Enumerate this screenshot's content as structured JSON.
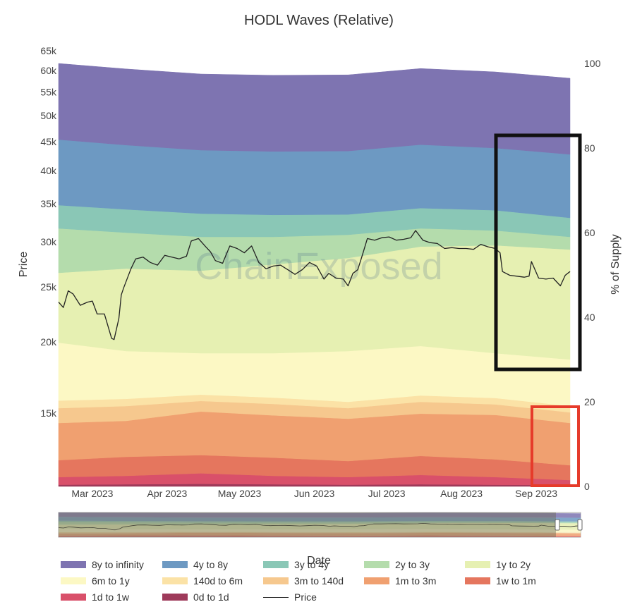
{
  "chart_data": {
    "type": "area",
    "title": "HODL Waves (Relative)",
    "watermark": "ChainExposed",
    "xlabel": "Date",
    "ylabel_left": "Price",
    "ylabel_right": "% of Supply",
    "x_ticks": [
      "Mar 2023",
      "Apr 2023",
      "May 2023",
      "Jun 2023",
      "Jul 2023",
      "Aug 2023",
      "Sep 2023"
    ],
    "x_tick_dates": [
      "2023-03-01",
      "2023-04-01",
      "2023-05-01",
      "2023-06-01",
      "2023-07-01",
      "2023-08-01",
      "2023-09-01"
    ],
    "x_range": [
      "2023-02-15",
      "2023-09-15"
    ],
    "y_left_scale": "log",
    "y_left_ticks": [
      "15k",
      "20k",
      "25k",
      "30k",
      "35k",
      "40k",
      "45k",
      "50k",
      "55k",
      "60k",
      "65k"
    ],
    "y_left_tick_values": [
      15000,
      20000,
      25000,
      30000,
      35000,
      40000,
      45000,
      50000,
      55000,
      60000,
      65000
    ],
    "y_right_ticks": [
      "0",
      "20",
      "40",
      "60",
      "80",
      "100"
    ],
    "y_right_range": [
      0,
      100
    ],
    "dates": [
      "2023-02-15",
      "2023-03-15",
      "2023-04-15",
      "2023-05-15",
      "2023-06-15",
      "2023-07-15",
      "2023-08-15",
      "2023-09-15"
    ],
    "series": [
      {
        "name": "0d to 1d",
        "color": "#9e3a5a",
        "values": [
          0.4,
          0.5,
          0.6,
          0.5,
          0.4,
          0.5,
          0.4,
          0.3
        ]
      },
      {
        "name": "1d to 1w",
        "color": "#d9506a",
        "values": [
          1.8,
          2.0,
          2.5,
          2.0,
          1.8,
          2.2,
          1.8,
          1.2
        ]
      },
      {
        "name": "1w to 1m",
        "color": "#e5765e",
        "values": [
          4.0,
          4.5,
          4.3,
          4.3,
          3.8,
          4.5,
          4.2,
          3.5
        ]
      },
      {
        "name": "1m to 3m",
        "color": "#f0a070",
        "values": [
          8.8,
          8.5,
          10.3,
          10.0,
          10.0,
          10.0,
          10.5,
          10.0
        ]
      },
      {
        "name": "3m to 140d",
        "color": "#f6c88e",
        "values": [
          3.5,
          3.5,
          2.5,
          2.7,
          2.5,
          2.8,
          2.5,
          2.5
        ]
      },
      {
        "name": "140d to 6m",
        "color": "#fbe2a6",
        "values": [
          1.8,
          1.7,
          1.5,
          1.5,
          1.5,
          1.5,
          1.5,
          1.5
        ]
      },
      {
        "name": "6m to 1y",
        "color": "#fcf8c4",
        "values": [
          13.7,
          11.3,
          9.8,
          10.5,
          12.0,
          11.7,
          10.6,
          11.0
        ]
      },
      {
        "name": "1y to 2y",
        "color": "#e6f0b2",
        "values": [
          16.5,
          19.5,
          19.5,
          21.0,
          22.0,
          23.5,
          25.5,
          26.0
        ]
      },
      {
        "name": "2y to 3y",
        "color": "#b4dcac",
        "values": [
          10.5,
          8.5,
          8.0,
          6.5,
          5.5,
          4.3,
          3.5,
          3.0
        ]
      },
      {
        "name": "3y to 4y",
        "color": "#8ac7b6",
        "values": [
          5.5,
          5.5,
          5.5,
          5.2,
          4.8,
          4.8,
          4.8,
          4.5
        ]
      },
      {
        "name": "4y to 8y",
        "color": "#6d99c2",
        "values": [
          15.5,
          15.2,
          15.0,
          15.0,
          15.0,
          15.0,
          14.7,
          15.0
        ]
      },
      {
        "name": "8y to infinity",
        "color": "#7e74b1",
        "values": [
          18.0,
          18.0,
          18.0,
          18.0,
          18.0,
          18.0,
          18.0,
          18.0
        ]
      }
    ],
    "price": {
      "name": "Price",
      "color": "#222222",
      "dates": [
        "2023-02-15",
        "2023-02-17",
        "2023-02-19",
        "2023-02-21",
        "2023-02-24",
        "2023-02-27",
        "2023-03-01",
        "2023-03-03",
        "2023-03-06",
        "2023-03-09",
        "2023-03-10",
        "2023-03-12",
        "2023-03-13",
        "2023-03-14",
        "2023-03-17",
        "2023-03-19",
        "2023-03-22",
        "2023-03-25",
        "2023-03-28",
        "2023-03-31",
        "2023-04-03",
        "2023-04-06",
        "2023-04-09",
        "2023-04-11",
        "2023-04-14",
        "2023-04-17",
        "2023-04-19",
        "2023-04-21",
        "2023-04-24",
        "2023-04-27",
        "2023-04-30",
        "2023-05-03",
        "2023-05-06",
        "2023-05-09",
        "2023-05-12",
        "2023-05-15",
        "2023-05-18",
        "2023-05-21",
        "2023-05-24",
        "2023-05-27",
        "2023-05-30",
        "2023-06-02",
        "2023-06-05",
        "2023-06-07",
        "2023-06-10",
        "2023-06-13",
        "2023-06-15",
        "2023-06-17",
        "2023-06-19",
        "2023-06-21",
        "2023-06-23",
        "2023-06-26",
        "2023-06-29",
        "2023-07-02",
        "2023-07-05",
        "2023-07-08",
        "2023-07-11",
        "2023-07-13",
        "2023-07-16",
        "2023-07-19",
        "2023-07-22",
        "2023-07-25",
        "2023-07-28",
        "2023-07-31",
        "2023-08-03",
        "2023-08-06",
        "2023-08-09",
        "2023-08-12",
        "2023-08-15",
        "2023-08-17",
        "2023-08-18",
        "2023-08-21",
        "2023-08-24",
        "2023-08-27",
        "2023-08-29",
        "2023-08-30",
        "2023-09-02",
        "2023-09-05",
        "2023-09-08",
        "2023-09-11",
        "2023-09-13",
        "2023-09-15"
      ],
      "values": [
        23500,
        23000,
        24600,
        24300,
        23200,
        23500,
        23600,
        22400,
        22400,
        20300,
        20200,
        22000,
        24200,
        24900,
        26900,
        28000,
        28200,
        27600,
        27300,
        28400,
        28200,
        28000,
        28300,
        30100,
        30400,
        29400,
        28800,
        27800,
        27500,
        29500,
        29200,
        28700,
        29500,
        27600,
        26900,
        27200,
        27300,
        26800,
        26300,
        26800,
        27600,
        27200,
        25800,
        26400,
        25900,
        25800,
        25100,
        26400,
        26800,
        28500,
        30400,
        30200,
        30500,
        30600,
        30200,
        30300,
        30500,
        31400,
        30200,
        29900,
        29800,
        29200,
        29300,
        29200,
        29200,
        29100,
        29700,
        29400,
        29200,
        28700,
        26600,
        26200,
        26100,
        26000,
        26100,
        27700,
        25900,
        25800,
        25900,
        25100,
        26200,
        26600
      ]
    }
  },
  "legend_items": [
    "8y to infinity",
    "4y to 8y",
    "3y to 4y",
    "2y to 3y",
    "1y to 2y",
    "6m to 1y",
    "140d to 6m",
    "3m to 140d",
    "1m to 3m",
    "1w to 1m",
    "1d to 1w",
    "0d to 1d",
    "Price"
  ],
  "annotation_colors": {
    "black_box": "#111111",
    "red_box": "#e63b2a"
  }
}
